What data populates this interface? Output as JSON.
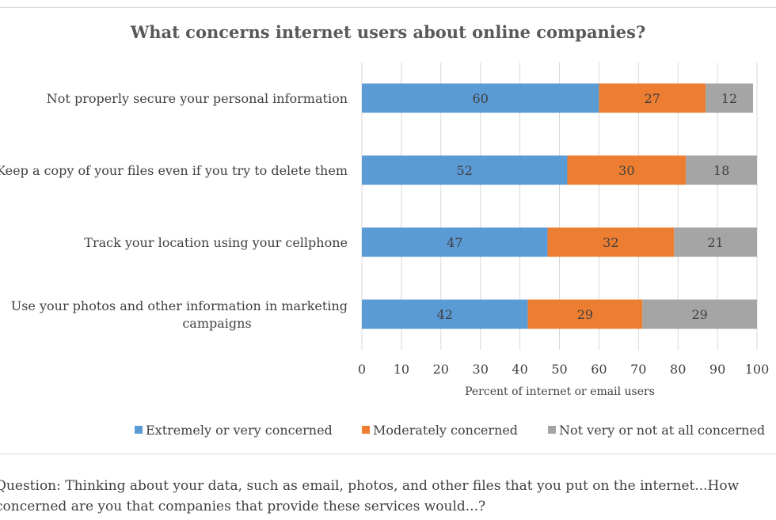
{
  "chart_data": {
    "type": "bar",
    "orientation": "horizontal",
    "stacked": true,
    "title": "What concerns internet users about online companies?",
    "categories": [
      "Not properly secure your personal information",
      "Keep a copy of your files even if you try to delete them",
      "Track your location using your cellphone",
      "Use your photos and other information in marketing campaigns"
    ],
    "series": [
      {
        "name": "Extremely or very concerned",
        "color": "#5b9bd5",
        "values": [
          60,
          52,
          47,
          42
        ]
      },
      {
        "name": "Moderately concerned",
        "color": "#ed7d31",
        "values": [
          27,
          30,
          32,
          29
        ]
      },
      {
        "name": "Not very or not at all concerned",
        "color": "#a5a5a5",
        "values": [
          12,
          18,
          21,
          29
        ]
      }
    ],
    "xlabel": "Percent of internet or email users",
    "xlim": [
      0,
      100
    ],
    "xticks": [
      0,
      10,
      20,
      30,
      40,
      50,
      60,
      70,
      80,
      90,
      100
    ],
    "grid": true,
    "legend_position": "bottom"
  },
  "footnote": "Question: Thinking about your data, such as email, photos, and other files that you put on the internet...How concerned are you that companies that provide these services would...?"
}
